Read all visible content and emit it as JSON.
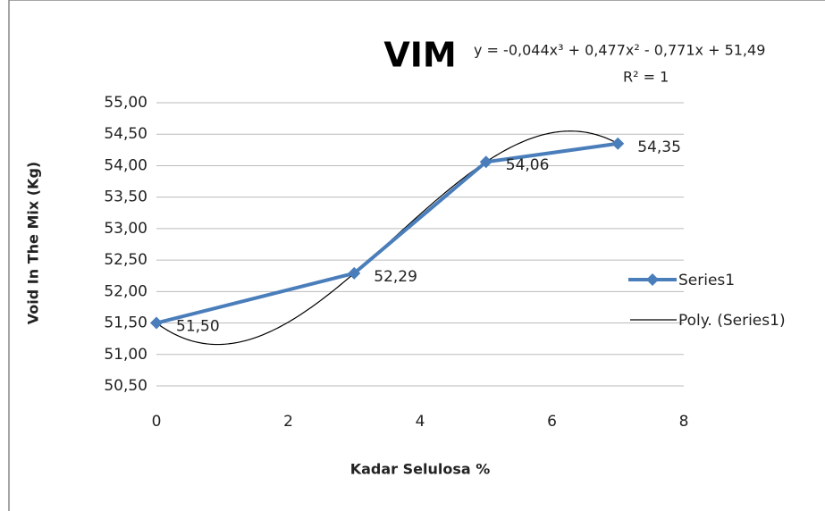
{
  "chart_data": {
    "type": "line",
    "title": "VIM",
    "x_label": "Kadar Selulosa %",
    "y_label": "Void In The Mix (Kg)",
    "x": [
      0,
      3,
      5,
      7
    ],
    "series": [
      {
        "name": "Series1",
        "color": "#4a7ebb",
        "values": [
          51.5,
          52.29,
          54.06,
          54.35
        ],
        "value_labels": [
          "51,50",
          "52,29",
          "54,06",
          "54,35"
        ]
      }
    ],
    "trendline": {
      "name": "Poly. (Series1)",
      "color": "#000000",
      "equation": "y = -0,044x³ + 0,477x² - 0,771x + 51,49",
      "r_squared": "R² = 1"
    },
    "xlim": [
      0,
      8
    ],
    "xticks": [
      0,
      2,
      4,
      6,
      8
    ],
    "ylim": [
      50.5,
      55
    ],
    "yticks": [
      {
        "value": 50.5,
        "label": "50,50"
      },
      {
        "value": 51,
        "label": "51,00"
      },
      {
        "value": 51.5,
        "label": "51,50"
      },
      {
        "value": 52,
        "label": "52,00"
      },
      {
        "value": 52.5,
        "label": "52,50"
      },
      {
        "value": 53,
        "label": "53,00"
      },
      {
        "value": 53.5,
        "label": "53,50"
      },
      {
        "value": 54,
        "label": "54,00"
      },
      {
        "value": 54.5,
        "label": "54,50"
      },
      {
        "value": 55,
        "label": "55,00"
      }
    ],
    "grid": true,
    "legend": "right"
  }
}
